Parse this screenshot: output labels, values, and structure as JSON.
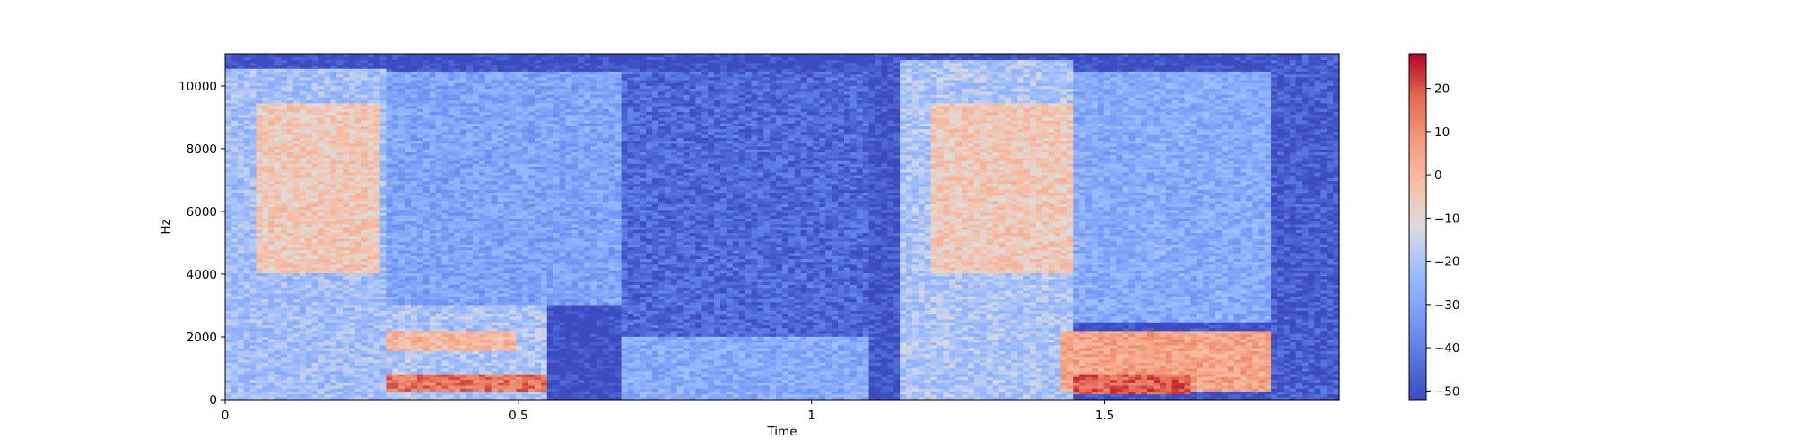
{
  "chart_data": {
    "type": "heatmap",
    "title": "",
    "xlabel": "Time",
    "ylabel": "Hz",
    "xlim": [
      0,
      1.9
    ],
    "ylim": [
      0,
      11025
    ],
    "x_ticks": [
      0,
      0.5,
      1,
      1.5
    ],
    "x_tick_labels": [
      "0",
      "0.5",
      "1",
      "1.5"
    ],
    "y_ticks": [
      0,
      2000,
      4000,
      6000,
      8000,
      10000
    ],
    "y_tick_labels": [
      "0",
      "2000",
      "4000",
      "6000",
      "8000",
      "10000"
    ],
    "colormap": "coolwarm",
    "colorbar": {
      "range": [
        -52,
        28
      ],
      "ticks": [
        -50,
        -40,
        -30,
        -20,
        -10,
        0,
        10,
        20
      ],
      "tick_labels": [
        "−50",
        "−40",
        "−30",
        "−20",
        "−10",
        "0",
        "10",
        "20"
      ]
    },
    "energy_regions": [
      {
        "t_start": 0.0,
        "t_end": 0.27,
        "f_low": 0,
        "f_high": 10600,
        "level_db": -22
      },
      {
        "t_start": 0.05,
        "t_end": 0.26,
        "f_low": 4000,
        "f_high": 9500,
        "level_db": -5
      },
      {
        "t_start": 0.27,
        "t_end": 0.55,
        "f_low": 0,
        "f_high": 3000,
        "level_db": -20
      },
      {
        "t_start": 0.27,
        "t_end": 0.55,
        "f_low": 300,
        "f_high": 800,
        "level_db": 15
      },
      {
        "t_start": 0.27,
        "t_end": 0.5,
        "f_low": 1600,
        "f_high": 2200,
        "level_db": 0
      },
      {
        "t_start": 0.27,
        "t_end": 0.68,
        "f_low": 3000,
        "f_high": 10500,
        "level_db": -30
      },
      {
        "t_start": 0.68,
        "t_end": 1.1,
        "f_low": 0,
        "f_high": 2000,
        "level_db": -28
      },
      {
        "t_start": 0.68,
        "t_end": 1.1,
        "f_low": 2000,
        "f_high": 10500,
        "level_db": -45
      },
      {
        "t_start": 1.1,
        "t_end": 1.15,
        "f_low": 0,
        "f_high": 11025,
        "level_db": -50
      },
      {
        "t_start": 1.15,
        "t_end": 1.45,
        "f_low": 0,
        "f_high": 10800,
        "level_db": -20
      },
      {
        "t_start": 1.2,
        "t_end": 1.45,
        "f_low": 4000,
        "f_high": 9500,
        "level_db": -5
      },
      {
        "t_start": 1.43,
        "t_end": 1.78,
        "f_low": 300,
        "f_high": 2200,
        "level_db": 5
      },
      {
        "t_start": 1.45,
        "t_end": 1.65,
        "f_low": 200,
        "f_high": 800,
        "level_db": 18
      },
      {
        "t_start": 1.45,
        "t_end": 1.78,
        "f_low": 2500,
        "f_high": 10500,
        "level_db": -28
      },
      {
        "t_start": 1.78,
        "t_end": 1.9,
        "f_low": 0,
        "f_high": 11025,
        "level_db": -48
      }
    ]
  }
}
